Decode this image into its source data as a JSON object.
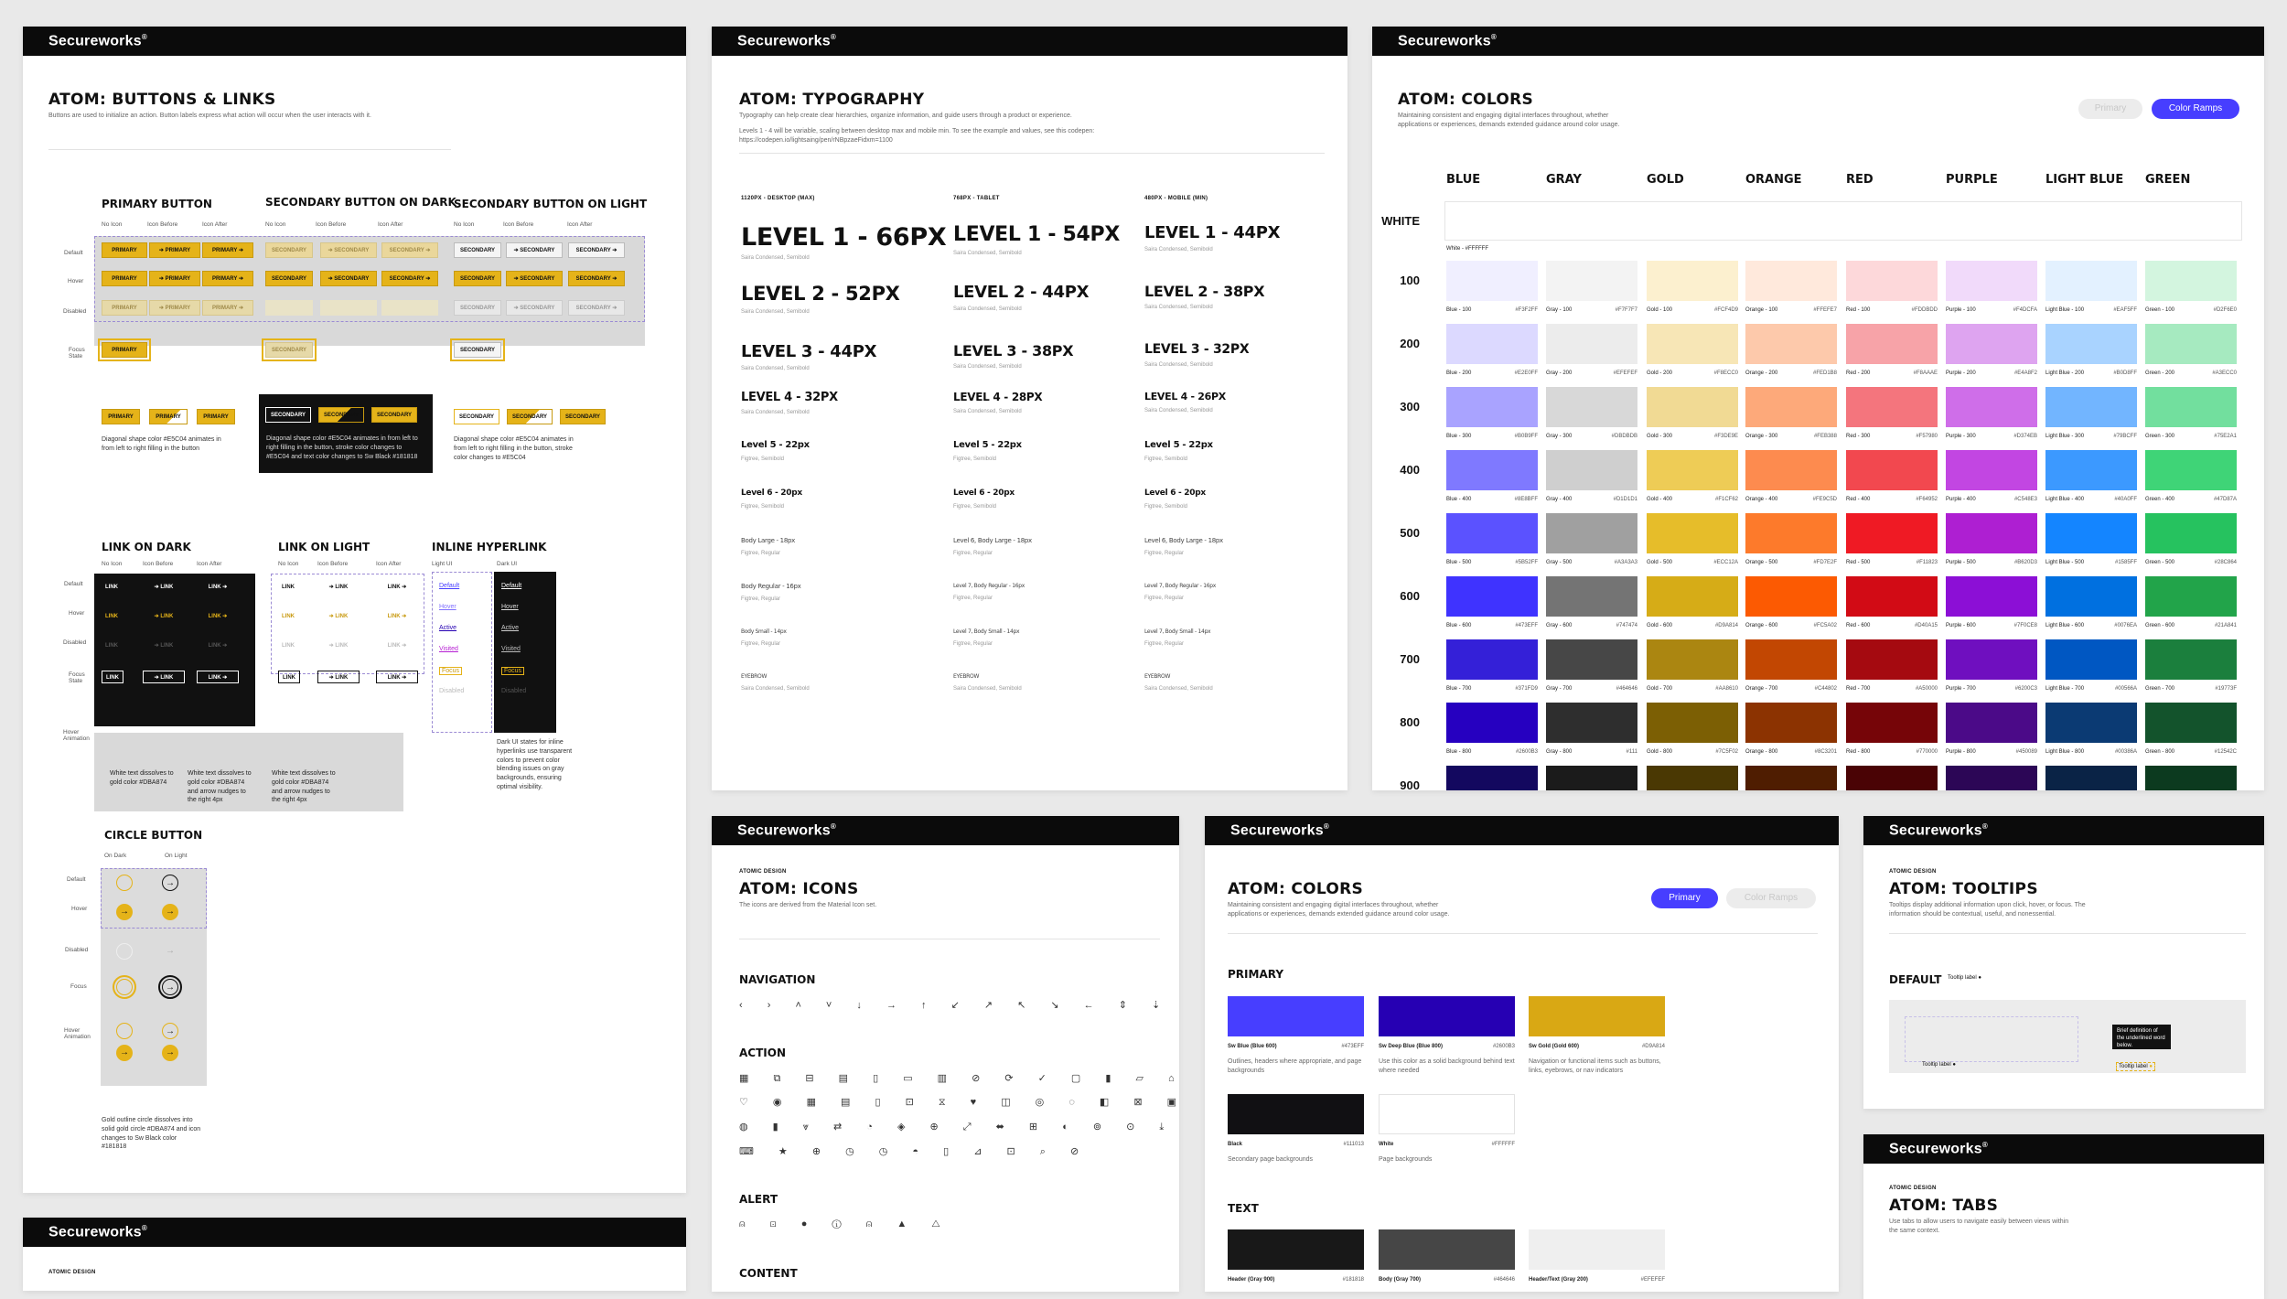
{
  "brand": "Secureworks",
  "buttons": {
    "title": "ATOM: BUTTONS & LINKS",
    "desc": "Buttons are used to initialize an action. Button labels express what action will occur when the user interacts with it.",
    "groups": [
      "PRIMARY BUTTON",
      "SECONDARY BUTTON ON DARK",
      "SECONDARY BUTTON ON LIGHT"
    ],
    "variants": [
      "No Icon",
      "Icon Before",
      "Icon After"
    ],
    "states": [
      "Default",
      "Hover",
      "Disabled",
      "Focus State"
    ],
    "primary_label": "PRIMARY",
    "secondary_label": "SECONDARY",
    "anim_notes": [
      "Diagonal shape color #E5C04 animates in from left to right filling in the button",
      "Diagonal shape color #E5C04 animates in from left to right filling in the button, stroke color changes to #E5C04 and text color changes to Sw Black #181818",
      "Diagonal shape color #E5C04 animates in from left to right filling in the button, stroke color changes to #E5C04"
    ],
    "link_groups": [
      "LINK ON DARK",
      "LINK ON LIGHT",
      "INLINE HYPERLINK"
    ],
    "link_label": "LINK",
    "link_states": [
      "Default",
      "Hover",
      "Disabled",
      "Focus State",
      "Hover Animation"
    ],
    "inline_cols": [
      "Light UI",
      "Dark UI"
    ],
    "inline_items": [
      "Default",
      "Hover",
      "Active",
      "Visited",
      "Focus",
      "Disabled"
    ],
    "link_notes": [
      "White text dissolves to gold color #DBA874",
      "White text dissolves to gold color #DBA874 and arrow nudges to the right 4px",
      "White text dissolves to gold color #DBA874 and arrow nudges to the right 4px"
    ],
    "inline_note": "Dark UI states for inline hyperlinks use transparent colors to prevent color blending issues on gray backgrounds, ensuring optimal visibility.",
    "circle_title": "CIRCLE BUTTON",
    "circle_cols": [
      "On Dark",
      "On Light"
    ],
    "circle_states": [
      "Default",
      "Hover",
      "Disabled",
      "Focus",
      "Hover Animation"
    ],
    "circle_note": "Gold outline circle dissolves into solid gold circle #DBA874 and icon changes to Sw Black color #181818"
  },
  "typography": {
    "title": "ATOM: TYPOGRAPHY",
    "desc1": "Typography can help create clear hierarchies, organize information, and guide users through a product or experience.",
    "desc2": "Levels 1 - 4 will be variable, scaling between desktop max and mobile min. To see the example and values, see this codepen:",
    "desc3": "https://codepen.io/lightsaing/pen/rNBpzaeFidxm=1100",
    "cols": [
      "1120PX - DESKTOP (MAX)",
      "768PX - TABLET",
      "480PX - MOBILE (MIN)"
    ],
    "col1": [
      "LEVEL 1 - 66PX",
      "LEVEL 2 - 52PX",
      "LEVEL 3 - 44PX",
      "LEVEL 4 - 32PX",
      "Level 5 - 22px",
      "Level 6 - 20px",
      "Body Large - 18px",
      "Body Regular - 16px",
      "Body Small - 14px",
      "EYEBROW"
    ],
    "col2": [
      "LEVEL 1 - 54PX",
      "LEVEL 2 - 44PX",
      "LEVEL 3 - 38PX",
      "LEVEL 4 - 28PX",
      "Level 5 - 22px",
      "Level 6 - 20px",
      "Level 6, Body Large - 18px",
      "Level 7, Body Regular - 16px",
      "Level 7, Body Small - 14px",
      "EYEBROW"
    ],
    "col3": [
      "LEVEL 1 - 44PX",
      "LEVEL 2 - 38PX",
      "LEVEL 3 - 32PX",
      "LEVEL 4 - 26PX",
      "Level 5 - 22px",
      "Level 6 - 20px",
      "Level 6, Body Large - 18px",
      "Level 7, Body Regular - 16px",
      "Level 7, Body Small - 14px",
      "EYEBROW"
    ],
    "subs": [
      "Saira Condensed, Semibold",
      "Saira Condensed, Semibold",
      "Saira Condensed, Semibold",
      "Saira Condensed, Semibold",
      "Figtree, Semibold",
      "Figtree, Semibold",
      "Figtree, Regular",
      "Figtree, Regular",
      "Figtree, Regular",
      "Saira Condensed, Semibold"
    ]
  },
  "colors_ramps": {
    "title": "ATOM: COLORS",
    "desc": "Maintaining consistent and engaging digital interfaces throughout, whether applications or experiences, demands extended guidance around color usage.",
    "toggle_primary": "Primary",
    "toggle_ramps": "Color Ramps",
    "families": [
      "BLUE",
      "GRAY",
      "GOLD",
      "ORANGE",
      "RED",
      "PURPLE",
      "LIGHT BLUE",
      "GREEN"
    ],
    "white_label": "WHITE",
    "white_caption": "White - #FFFFFF",
    "rows": [
      "100",
      "200",
      "300",
      "400",
      "500",
      "600",
      "700",
      "800",
      "900"
    ],
    "swatches": [
      [
        {
          "n": "Blue - 100",
          "h": "#F3F2FF",
          "c": "#f0efff"
        },
        {
          "n": "Gray - 100",
          "h": "#F7F7F7",
          "c": "#f3f3f3"
        },
        {
          "n": "Gold - 100",
          "h": "#FCF4D9",
          "c": "#fcf0cf"
        },
        {
          "n": "Orange - 100",
          "h": "#FFEFE7",
          "c": "#ffe9dc"
        },
        {
          "n": "Red - 100",
          "h": "#FDDBDD",
          "c": "#fdd8da"
        },
        {
          "n": "Purple - 100",
          "h": "#F4DCFA",
          "c": "#f1dafa"
        },
        {
          "n": "Light Blue - 100",
          "h": "#EAF5FF",
          "c": "#e3f1ff"
        },
        {
          "n": "Green - 100",
          "h": "#D2F6E0",
          "c": "#d3f5df"
        }
      ],
      [
        {
          "n": "Blue - 200",
          "h": "#E2E0FF",
          "c": "#dcd9ff"
        },
        {
          "n": "Gray - 200",
          "h": "#EFEFEF",
          "c": "#ececec"
        },
        {
          "n": "Gold - 200",
          "h": "#F8ECC0",
          "c": "#f7e6b6"
        },
        {
          "n": "Orange - 200",
          "h": "#FED1B8",
          "c": "#fdc9ab"
        },
        {
          "n": "Red - 200",
          "h": "#F8AAAE",
          "c": "#f7a3a8"
        },
        {
          "n": "Purple - 200",
          "h": "#E4A8F2",
          "c": "#dea4f0"
        },
        {
          "n": "Light Blue - 200",
          "h": "#B0D8FF",
          "c": "#a9d3ff"
        },
        {
          "n": "Green - 200",
          "h": "#A3ECC0",
          "c": "#a6eac0"
        }
      ],
      [
        {
          "n": "Blue - 300",
          "h": "#B0B9FF",
          "c": "#a9a3ff"
        },
        {
          "n": "Gray - 300",
          "h": "#DBDBDB",
          "c": "#d8d8d8"
        },
        {
          "n": "Gold - 300",
          "h": "#F3DE9E",
          "c": "#f1da94"
        },
        {
          "n": "Orange - 300",
          "h": "#FEB388",
          "c": "#fda97a"
        },
        {
          "n": "Red - 300",
          "h": "#F57980",
          "c": "#f4757d"
        },
        {
          "n": "Purple - 300",
          "h": "#D374EB",
          "c": "#cf6ee9"
        },
        {
          "n": "Light Blue - 300",
          "h": "#79BCFF",
          "c": "#72b5ff"
        },
        {
          "n": "Green - 300",
          "h": "#75E2A1",
          "c": "#72df9e"
        }
      ],
      [
        {
          "n": "Blue - 400",
          "h": "#8E8BFF",
          "c": "#7f79ff"
        },
        {
          "n": "Gray - 400",
          "h": "#D1D1D1",
          "c": "#cfcfcf"
        },
        {
          "n": "Gold - 400",
          "h": "#F1CF62",
          "c": "#eecc56"
        },
        {
          "n": "Orange - 400",
          "h": "#FE9C5D",
          "c": "#fd8b4f"
        },
        {
          "n": "Red - 400",
          "h": "#F64952",
          "c": "#f2484f"
        },
        {
          "n": "Purple - 400",
          "h": "#C548E3",
          "c": "#c246e2"
        },
        {
          "n": "Light Blue - 400",
          "h": "#40A0FF",
          "c": "#3c99ff"
        },
        {
          "n": "Green - 400",
          "h": "#47D87A",
          "c": "#3fd477"
        }
      ],
      [
        {
          "n": "Blue - 500",
          "h": "#5B52FF",
          "c": "#5b52ff"
        },
        {
          "n": "Gray - 500",
          "h": "#A3A3A3",
          "c": "#a0a0a0"
        },
        {
          "n": "Gold - 500",
          "h": "#ECC12A",
          "c": "#e6bd2a"
        },
        {
          "n": "Orange - 500",
          "h": "#FD7E2F",
          "c": "#fd7a2b"
        },
        {
          "n": "Red - 500",
          "h": "#F11823",
          "c": "#ef1a24"
        },
        {
          "n": "Purple - 500",
          "h": "#B620D3",
          "c": "#ae1fd2"
        },
        {
          "n": "Light Blue - 500",
          "h": "#1585FF",
          "c": "#1485ff"
        },
        {
          "n": "Green - 500",
          "h": "#28C864",
          "c": "#26c25f"
        }
      ],
      [
        {
          "n": "Blue - 600",
          "h": "#473EFF",
          "c": "#3f33ff"
        },
        {
          "n": "Gray - 600",
          "h": "#747474",
          "c": "#747474"
        },
        {
          "n": "Gold - 600",
          "h": "#D9A814",
          "c": "#d6ac17"
        },
        {
          "n": "Orange - 600",
          "h": "#FC5A02",
          "c": "#fc5a02"
        },
        {
          "n": "Red - 600",
          "h": "#D40A15",
          "c": "#d20b15"
        },
        {
          "n": "Purple - 600",
          "h": "#7F0CE8",
          "c": "#8c0fd6"
        },
        {
          "n": "Light Blue - 600",
          "h": "#0076EA",
          "c": "#0070e0"
        },
        {
          "n": "Green - 600",
          "h": "#21A841",
          "c": "#22a44a"
        }
      ],
      [
        {
          "n": "Blue - 700",
          "h": "#371FD9",
          "c": "#3420d8"
        },
        {
          "n": "Gray - 700",
          "h": "#464646",
          "c": "#474747"
        },
        {
          "n": "Gold - 700",
          "h": "#AA8610",
          "c": "#ab8611"
        },
        {
          "n": "Orange - 700",
          "h": "#C44802",
          "c": "#c24702"
        },
        {
          "n": "Red - 700",
          "h": "#A50000",
          "c": "#a50a10"
        },
        {
          "n": "Purple - 700",
          "h": "#6200C3",
          "c": "#6f0fbf"
        },
        {
          "n": "Light Blue - 700",
          "h": "#00566A",
          "c": "#0057c2"
        },
        {
          "n": "Green - 700",
          "h": "#19773F",
          "c": "#1b7f3d"
        }
      ],
      [
        {
          "n": "Blue - 800",
          "h": "#2600B3",
          "c": "#2600c0"
        },
        {
          "n": "Gray - 800",
          "h": "#111",
          "c": "#2e2e2e"
        },
        {
          "n": "Gold - 800",
          "h": "#7C5F02",
          "c": "#7c5f04"
        },
        {
          "n": "Orange - 800",
          "h": "#8C3201",
          "c": "#8c3301"
        },
        {
          "n": "Red - 800",
          "h": "#770000",
          "c": "#760508"
        },
        {
          "n": "Purple - 800",
          "h": "#450089",
          "c": "#4b0a88"
        },
        {
          "n": "Light Blue - 800",
          "h": "#00386A",
          "c": "#0b3a73"
        },
        {
          "n": "Green - 800",
          "h": "#12542C",
          "c": "#13532c"
        }
      ],
      [
        {
          "n": "",
          "h": "",
          "c": "#13085f"
        },
        {
          "n": "",
          "h": "",
          "c": "#1b1b1b"
        },
        {
          "n": "",
          "h": "",
          "c": "#4a3803"
        },
        {
          "n": "",
          "h": "",
          "c": "#4f1d01"
        },
        {
          "n": "",
          "h": "",
          "c": "#4a0305"
        },
        {
          "n": "",
          "h": "",
          "c": "#2c0656"
        },
        {
          "n": "",
          "h": "",
          "c": "#0a2346"
        },
        {
          "n": "",
          "h": "",
          "c": "#0c3a1f"
        }
      ]
    ]
  },
  "icons": {
    "kicker": "ATOMIC DESIGN",
    "title": "ATOM: ICONS",
    "desc": "The icons are derived from the Material Icon set.",
    "sections": [
      "NAVIGATION",
      "ACTION",
      "ALERT",
      "CONTENT"
    ],
    "nav_icons": "‹ › ˄ ˅ ↓ → ↑ ↙ ↗ ↖ ↘ ← ⇕ ⇣ ↻ ≡ ✕",
    "action_icons": [
      "▦ ⧉ ⊟ ▤ ▯ ▭ ▥ ⊘ ⟳ ✓ ▢ ▮ ▱ ⌂ ⬚",
      "♡ ◉ ▦ ▤ ▯ ⊡ ⧖ ♥ ◫ ◎ ◌ ◧ ⊠ ▣ ◇ ⟲ ⊗",
      "◍ ▮ ⩔ ⇄ ◔ ◈ ⊕ ⤢ ⬌ ⊞ ◐ ⊚ ⊙ ⤓ ⊖ ⁝ ⊘",
      "⌨ ★ ⊕ ◷ ◷ ◓ ▯ ⊿ ⊡ ⌕ ⊘"
    ],
    "alert_icons": "⍝ ⊡ ● ⓘ ⍝ ▲ △"
  },
  "colors_primary": {
    "title": "ATOM: COLORS",
    "desc": "Maintaining consistent and engaging digital interfaces throughout, whether applications or experiences, demands extended guidance around color usage.",
    "toggle_primary": "Primary",
    "toggle_ramps": "Color Ramps",
    "primary_head": "PRIMARY",
    "text_head": "TEXT",
    "primary": [
      {
        "n": "Sw Blue (Blue 600)",
        "h": "#473EFF",
        "c": "#473eff",
        "note": "Outlines, headers where appropriate, and page backgrounds"
      },
      {
        "n": "Sw Deep Blue (Blue 800)",
        "h": "#2600B3",
        "c": "#2600b3",
        "note": "Use this color as a solid background behind text where needed"
      },
      {
        "n": "Sw Gold (Gold 600)",
        "h": "#D9A814",
        "c": "#d9a814",
        "note": "Navigation or functional items such as buttons, links, eyebrows, or nav indicators"
      },
      {
        "n": "Black",
        "h": "#111013",
        "c": "#111013",
        "note": "Secondary page backgrounds"
      },
      {
        "n": "White",
        "h": "#FFFFFF",
        "c": "#ffffff",
        "note": "Page backgrounds"
      }
    ],
    "text": [
      {
        "n": "Header (Gray 900)",
        "h": "#181818",
        "c": "#181818"
      },
      {
        "n": "Body (Gray 700)",
        "h": "#464646",
        "c": "#464646"
      },
      {
        "n": "Header/Text (Gray 200)",
        "h": "#EFEFEF",
        "c": "#efefef"
      }
    ]
  },
  "tooltips": {
    "kicker": "ATOMIC DESIGN",
    "title": "ATOM: TOOLTIPS",
    "desc": "Tooltips display additional information upon click, hover, or focus. The information should be contextual, useful, and nonessential.",
    "default_label": "DEFAULT",
    "tooltip_label": "Tooltip label",
    "tip_text": "Brief definition of the underlined word below."
  },
  "tabs": {
    "kicker": "ATOMIC DESIGN",
    "title": "ATOM: TABS",
    "desc": "Use tabs to allow users to navigate easily between views within the same context."
  },
  "bottom_panel": {
    "kicker": "ATOMIC DESIGN"
  }
}
